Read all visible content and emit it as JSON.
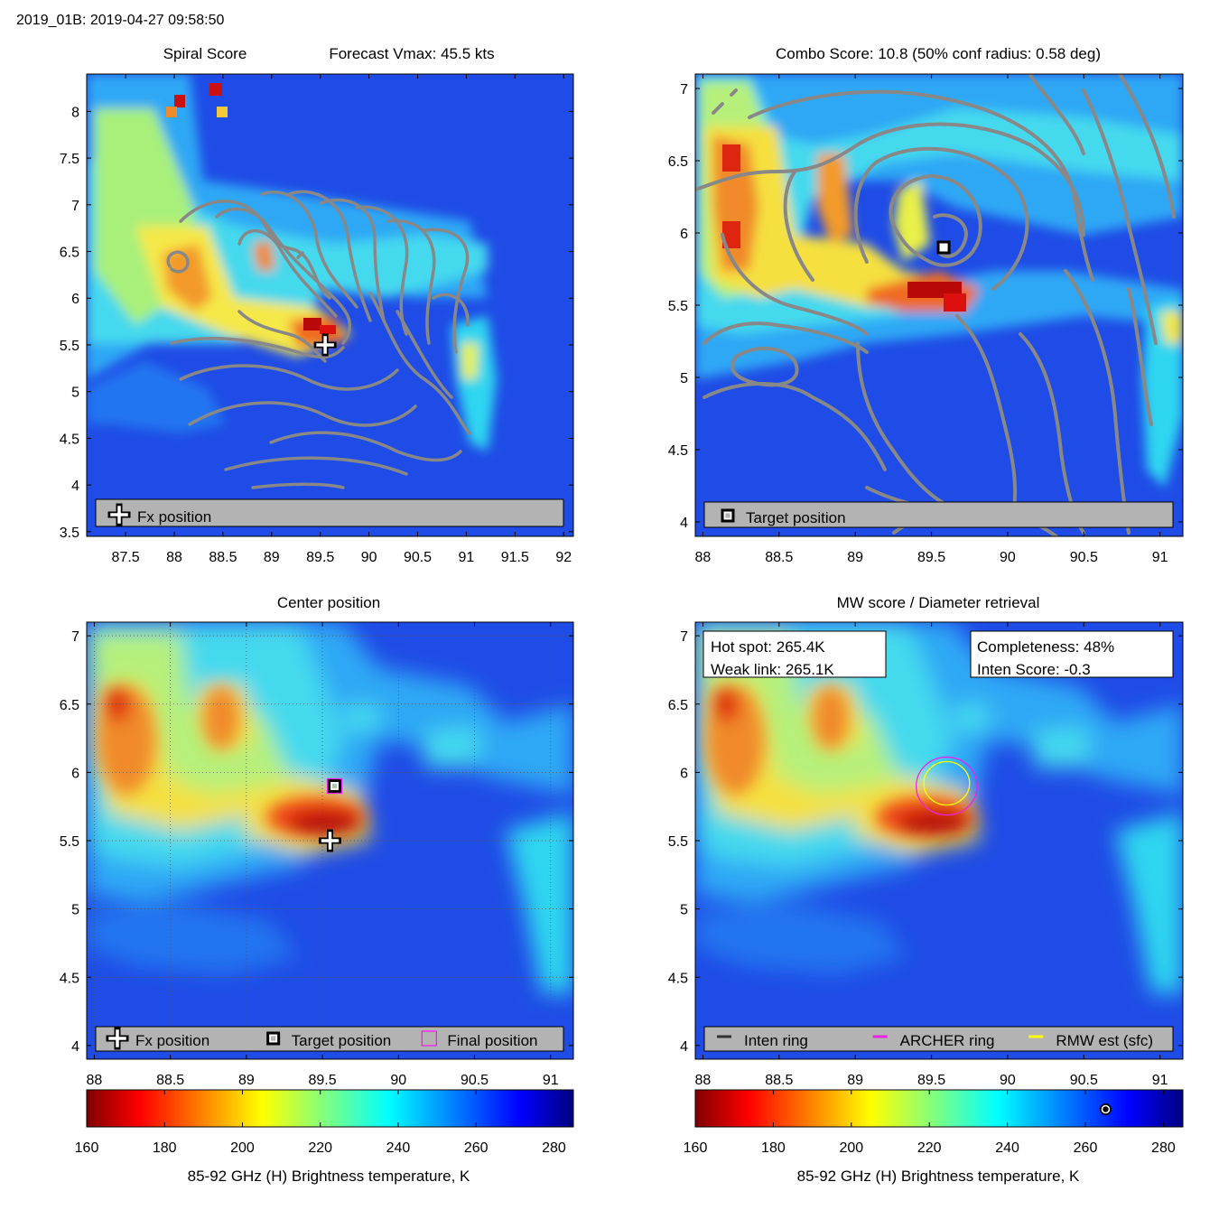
{
  "figure_title": "2019_01B: 2019-04-27 09:58:50",
  "chart_data": [
    {
      "type": "heatmap",
      "title_left": "Spiral Score",
      "title_right": "Forecast Vmax: 45.5 kts",
      "xlim": [
        87.1,
        92.1
      ],
      "ylim": [
        3.45,
        8.4
      ],
      "x_ticks": [
        87.5,
        88,
        88.5,
        89,
        89.5,
        90,
        90.5,
        91,
        91.5,
        92
      ],
      "y_ticks": [
        3.5,
        4,
        4.5,
        5,
        5.5,
        6,
        6.5,
        7,
        7.5,
        8
      ],
      "markers": [
        {
          "type": "plus",
          "x": 89.55,
          "y": 5.5
        }
      ],
      "legend": {
        "position": "bottom",
        "entries": [
          {
            "symbol": "plus",
            "label": "Fx position"
          }
        ]
      }
    },
    {
      "type": "heatmap",
      "title": "Combo Score: 10.8  (50% conf radius: 0.58 deg)",
      "xlim": [
        87.95,
        91.15
      ],
      "ylim": [
        3.9,
        7.1
      ],
      "x_ticks": [
        88,
        88.5,
        89,
        89.5,
        90,
        90.5,
        91
      ],
      "y_ticks": [
        4,
        4.5,
        5,
        5.5,
        6,
        6.5,
        7
      ],
      "markers": [
        {
          "type": "square",
          "x": 89.58,
          "y": 5.9
        }
      ],
      "legend": {
        "position": "bottom",
        "entries": [
          {
            "symbol": "square",
            "label": "Target position"
          }
        ]
      }
    },
    {
      "type": "heatmap",
      "title": "Center position",
      "xlim": [
        87.95,
        91.15
      ],
      "ylim": [
        3.9,
        7.1
      ],
      "x_ticks": [
        88,
        88.5,
        89,
        89.5,
        90,
        90.5,
        91
      ],
      "y_ticks": [
        4,
        4.5,
        5,
        5.5,
        6,
        6.5,
        7
      ],
      "grid": true,
      "markers": [
        {
          "type": "plus",
          "x": 89.55,
          "y": 5.5
        },
        {
          "type": "square",
          "x": 89.58,
          "y": 5.9
        },
        {
          "type": "final",
          "x": 89.58,
          "y": 5.9
        }
      ],
      "legend": {
        "position": "bottom",
        "entries": [
          {
            "symbol": "plus",
            "label": "Fx position"
          },
          {
            "symbol": "square",
            "label": "Target position"
          },
          {
            "symbol": "final",
            "label": "Final position"
          }
        ]
      },
      "colorbar": {
        "label": "85-92 GHz (H) Brightness temperature, K",
        "range": [
          160,
          285
        ],
        "ticks": [
          160,
          180,
          200,
          220,
          240,
          260,
          280
        ]
      }
    },
    {
      "type": "heatmap",
      "title": "MW score / Diameter retrieval",
      "xlim": [
        87.95,
        91.15
      ],
      "ylim": [
        3.9,
        7.1
      ],
      "x_ticks": [
        88,
        88.5,
        89,
        89.5,
        90,
        90.5,
        91
      ],
      "y_ticks": [
        4,
        4.5,
        5,
        5.5,
        6,
        6.5,
        7
      ],
      "info_left": [
        "Hot spot: 265.4K",
        "Weak link: 265.1K"
      ],
      "info_right": [
        "Completeness: 48%",
        "Inten Score: -0.3"
      ],
      "rings": [
        {
          "name": "ARCHER ring",
          "color": "#ee22ee",
          "x": 89.6,
          "y": 5.9,
          "r": 0.2
        },
        {
          "name": "RMW est (sfc)",
          "color": "#ffff00",
          "x": 89.6,
          "y": 5.92,
          "r": 0.15
        }
      ],
      "legend": {
        "position": "bottom",
        "entries": [
          {
            "symbol": "line",
            "color": "#333333",
            "label": "Inten ring"
          },
          {
            "symbol": "line",
            "color": "#ee22ee",
            "label": "ARCHER ring"
          },
          {
            "symbol": "line",
            "color": "#ffff00",
            "label": "RMW est (sfc)"
          }
        ]
      },
      "colorbar": {
        "label": "85-92 GHz (H) Brightness temperature, K",
        "range": [
          160,
          285
        ],
        "ticks": [
          160,
          180,
          200,
          220,
          240,
          260,
          280
        ],
        "marker_value": 265.2
      }
    }
  ]
}
